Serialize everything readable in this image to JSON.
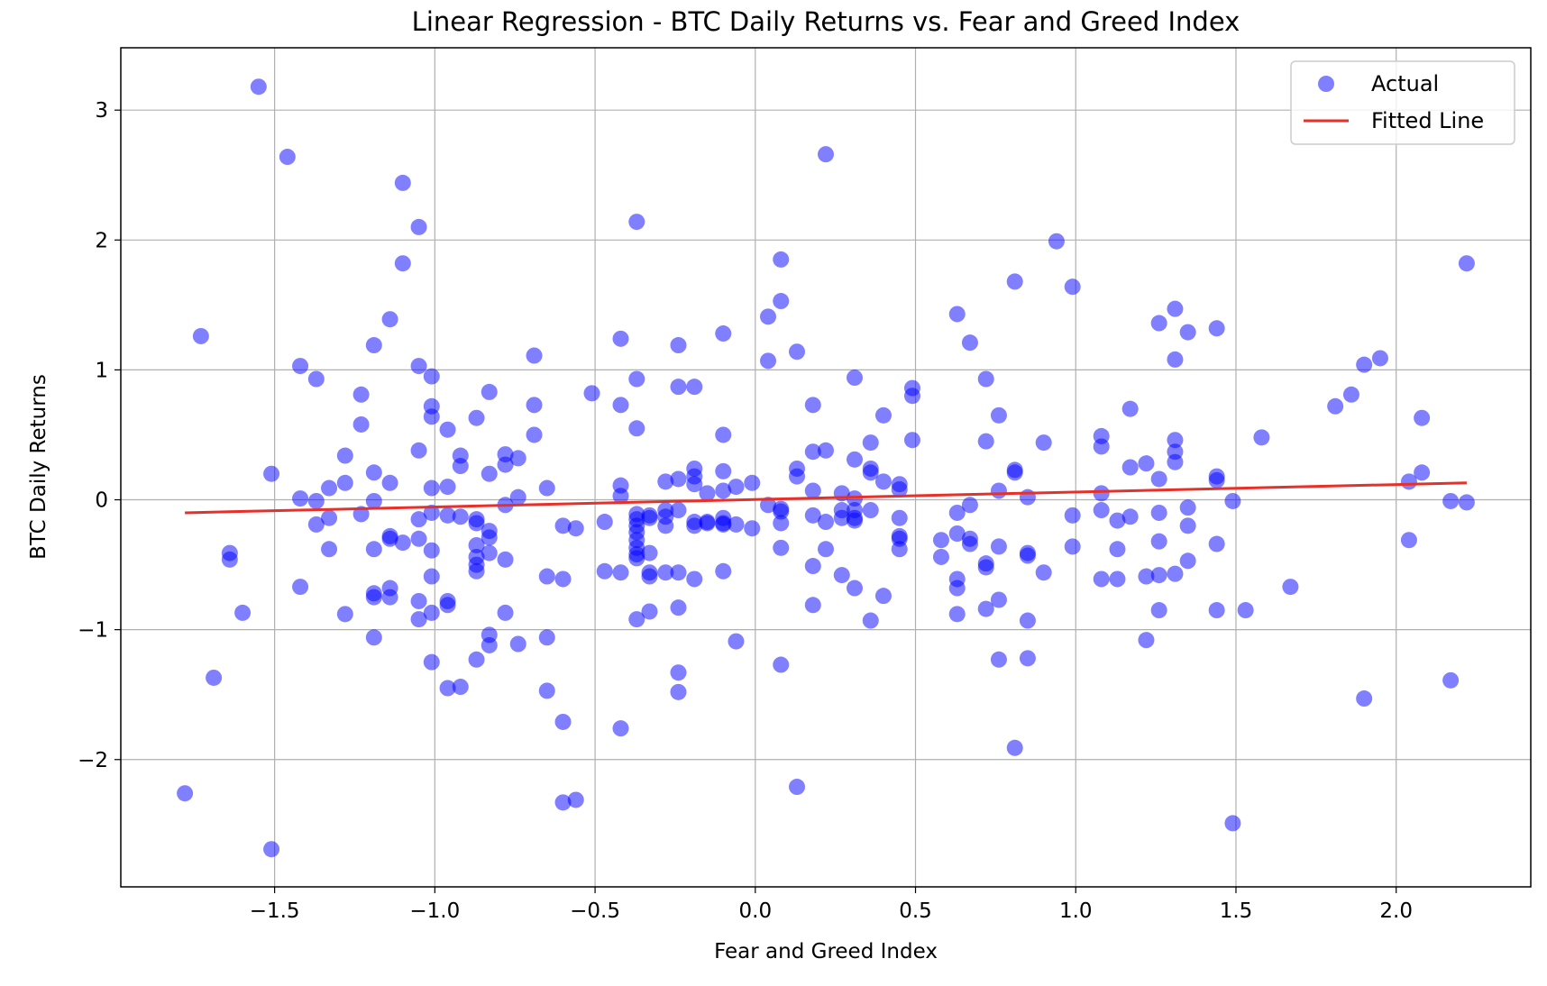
{
  "chart_data": {
    "type": "scatter",
    "title": "Linear Regression - BTC Daily Returns vs. Fear and Greed Index",
    "xlabel": "Fear and Greed Index",
    "ylabel": "BTC Daily Returns",
    "xlim": [
      -1.98,
      2.42
    ],
    "ylim": [
      -2.98,
      3.48
    ],
    "xticks": [
      -1.5,
      -1.0,
      -0.5,
      0.0,
      0.5,
      1.0,
      1.5,
      2.0
    ],
    "xtick_labels": [
      "−1.5",
      "−1.0",
      "−0.5",
      "0.0",
      "0.5",
      "1.0",
      "1.5",
      "2.0"
    ],
    "yticks": [
      -2,
      -1,
      0,
      1,
      2,
      3
    ],
    "ytick_labels": [
      "−2",
      "−1",
      "0",
      "1",
      "2",
      "3"
    ],
    "grid": true,
    "legend_position": "top-right",
    "colors": {
      "scatter": "#0000ff",
      "line": "#e8302a"
    },
    "series": [
      {
        "name": "Actual",
        "kind": "scatter",
        "points": [
          [
            -1.78,
            -2.26
          ],
          [
            -1.73,
            1.26
          ],
          [
            -1.69,
            -1.37
          ],
          [
            -1.64,
            -0.41
          ],
          [
            -1.64,
            -0.46
          ],
          [
            -1.6,
            -0.87
          ],
          [
            -1.55,
            3.18
          ],
          [
            -1.51,
            0.2
          ],
          [
            -1.51,
            -2.69
          ],
          [
            -1.46,
            2.64
          ],
          [
            -1.42,
            1.03
          ],
          [
            -1.42,
            0.01
          ],
          [
            -1.42,
            -0.67
          ],
          [
            -1.37,
            0.93
          ],
          [
            -1.37,
            -0.19
          ],
          [
            -1.37,
            -0.01
          ],
          [
            -1.33,
            0.09
          ],
          [
            -1.33,
            -0.14
          ],
          [
            -1.33,
            -0.38
          ],
          [
            -1.28,
            0.34
          ],
          [
            -1.28,
            0.13
          ],
          [
            -1.28,
            -0.88
          ],
          [
            -1.23,
            0.81
          ],
          [
            -1.23,
            0.58
          ],
          [
            -1.23,
            -0.11
          ],
          [
            -1.19,
            1.19
          ],
          [
            -1.19,
            0.21
          ],
          [
            -1.19,
            -0.01
          ],
          [
            -1.19,
            -0.38
          ],
          [
            -1.19,
            -0.72
          ],
          [
            -1.19,
            -0.75
          ],
          [
            -1.19,
            -1.06
          ],
          [
            -1.14,
            1.39
          ],
          [
            -1.14,
            0.13
          ],
          [
            -1.14,
            -0.28
          ],
          [
            -1.14,
            -0.3
          ],
          [
            -1.14,
            -0.68
          ],
          [
            -1.14,
            -0.75
          ],
          [
            -1.1,
            2.44
          ],
          [
            -1.1,
            1.82
          ],
          [
            -1.1,
            -0.33
          ],
          [
            -1.05,
            2.1
          ],
          [
            -1.05,
            1.03
          ],
          [
            -1.05,
            0.38
          ],
          [
            -1.05,
            -0.15
          ],
          [
            -1.05,
            -0.3
          ],
          [
            -1.05,
            -0.78
          ],
          [
            -1.05,
            -0.92
          ],
          [
            -1.01,
            0.95
          ],
          [
            -1.01,
            0.72
          ],
          [
            -1.01,
            0.64
          ],
          [
            -1.01,
            0.09
          ],
          [
            -1.01,
            -0.1
          ],
          [
            -1.01,
            -0.39
          ],
          [
            -1.01,
            -0.59
          ],
          [
            -1.01,
            -0.87
          ],
          [
            -1.01,
            -1.25
          ],
          [
            -0.96,
            0.54
          ],
          [
            -0.96,
            0.1
          ],
          [
            -0.96,
            -0.12
          ],
          [
            -0.96,
            -0.78
          ],
          [
            -0.96,
            -0.81
          ],
          [
            -0.96,
            -1.45
          ],
          [
            -0.92,
            0.34
          ],
          [
            -0.92,
            0.26
          ],
          [
            -0.92,
            -0.13
          ],
          [
            -0.92,
            -1.44
          ],
          [
            -0.87,
            0.63
          ],
          [
            -0.87,
            -0.15
          ],
          [
            -0.87,
            -0.18
          ],
          [
            -0.87,
            -0.35
          ],
          [
            -0.87,
            -0.44
          ],
          [
            -0.87,
            -0.5
          ],
          [
            -0.87,
            -0.55
          ],
          [
            -0.87,
            -1.23
          ],
          [
            -0.83,
            0.83
          ],
          [
            -0.83,
            0.2
          ],
          [
            -0.83,
            -0.24
          ],
          [
            -0.83,
            -0.29
          ],
          [
            -0.83,
            -0.41
          ],
          [
            -0.83,
            -1.04
          ],
          [
            -0.83,
            -1.12
          ],
          [
            -0.78,
            0.35
          ],
          [
            -0.78,
            0.27
          ],
          [
            -0.78,
            -0.04
          ],
          [
            -0.78,
            -0.46
          ],
          [
            -0.78,
            -0.87
          ],
          [
            -0.74,
            0.32
          ],
          [
            -0.74,
            0.02
          ],
          [
            -0.74,
            -1.11
          ],
          [
            -0.69,
            1.11
          ],
          [
            -0.69,
            0.73
          ],
          [
            -0.69,
            0.5
          ],
          [
            -0.65,
            0.09
          ],
          [
            -0.65,
            -0.59
          ],
          [
            -0.65,
            -1.06
          ],
          [
            -0.65,
            -1.47
          ],
          [
            -0.6,
            -0.2
          ],
          [
            -0.6,
            -0.61
          ],
          [
            -0.6,
            -1.71
          ],
          [
            -0.6,
            -2.33
          ],
          [
            -0.56,
            -0.22
          ],
          [
            -0.56,
            -2.31
          ],
          [
            -0.51,
            0.82
          ],
          [
            -0.47,
            -0.17
          ],
          [
            -0.47,
            -0.55
          ],
          [
            -0.42,
            1.24
          ],
          [
            -0.42,
            0.73
          ],
          [
            -0.42,
            0.11
          ],
          [
            -0.42,
            0.03
          ],
          [
            -0.42,
            -0.56
          ],
          [
            -0.42,
            -1.76
          ],
          [
            -0.37,
            2.14
          ],
          [
            -0.37,
            0.93
          ],
          [
            -0.37,
            0.55
          ],
          [
            -0.37,
            -0.11
          ],
          [
            -0.37,
            -0.15
          ],
          [
            -0.37,
            -0.2
          ],
          [
            -0.37,
            -0.25
          ],
          [
            -0.37,
            -0.31
          ],
          [
            -0.37,
            -0.37
          ],
          [
            -0.37,
            -0.42
          ],
          [
            -0.37,
            -0.45
          ],
          [
            -0.37,
            -0.92
          ],
          [
            -0.33,
            -0.12
          ],
          [
            -0.33,
            -0.14
          ],
          [
            -0.33,
            -0.41
          ],
          [
            -0.33,
            -0.56
          ],
          [
            -0.33,
            -0.59
          ],
          [
            -0.33,
            -0.86
          ],
          [
            -0.28,
            0.14
          ],
          [
            -0.28,
            -0.08
          ],
          [
            -0.28,
            -0.13
          ],
          [
            -0.28,
            -0.2
          ],
          [
            -0.28,
            -0.56
          ],
          [
            -0.24,
            1.19
          ],
          [
            -0.24,
            0.87
          ],
          [
            -0.24,
            0.16
          ],
          [
            -0.24,
            -0.08
          ],
          [
            -0.24,
            -0.56
          ],
          [
            -0.24,
            -0.83
          ],
          [
            -0.24,
            -1.33
          ],
          [
            -0.24,
            -1.48
          ],
          [
            -0.19,
            0.87
          ],
          [
            -0.19,
            0.24
          ],
          [
            -0.19,
            0.18
          ],
          [
            -0.19,
            0.12
          ],
          [
            -0.19,
            -0.17
          ],
          [
            -0.19,
            -0.2
          ],
          [
            -0.19,
            -0.61
          ],
          [
            -0.15,
            0.05
          ],
          [
            -0.15,
            -0.17
          ],
          [
            -0.15,
            -0.18
          ],
          [
            -0.1,
            1.28
          ],
          [
            -0.1,
            0.5
          ],
          [
            -0.1,
            0.22
          ],
          [
            -0.1,
            0.07
          ],
          [
            -0.1,
            -0.14
          ],
          [
            -0.1,
            -0.18
          ],
          [
            -0.1,
            -0.19
          ],
          [
            -0.1,
            -0.55
          ],
          [
            -0.06,
            0.1
          ],
          [
            -0.06,
            -0.19
          ],
          [
            -0.06,
            -1.09
          ],
          [
            -0.01,
            0.13
          ],
          [
            -0.01,
            -0.22
          ],
          [
            0.04,
            1.41
          ],
          [
            0.04,
            1.07
          ],
          [
            0.04,
            -0.04
          ],
          [
            0.08,
            1.85
          ],
          [
            0.08,
            1.53
          ],
          [
            0.08,
            -0.07
          ],
          [
            0.08,
            -0.09
          ],
          [
            0.08,
            -0.18
          ],
          [
            0.08,
            -0.37
          ],
          [
            0.08,
            -1.27
          ],
          [
            0.13,
            1.14
          ],
          [
            0.13,
            0.24
          ],
          [
            0.13,
            0.18
          ],
          [
            0.13,
            -2.21
          ],
          [
            0.18,
            0.73
          ],
          [
            0.18,
            0.37
          ],
          [
            0.18,
            0.07
          ],
          [
            0.18,
            -0.12
          ],
          [
            0.18,
            -0.51
          ],
          [
            0.18,
            -0.81
          ],
          [
            0.22,
            2.66
          ],
          [
            0.22,
            0.38
          ],
          [
            0.22,
            -0.17
          ],
          [
            0.22,
            -0.38
          ],
          [
            0.27,
            0.05
          ],
          [
            0.27,
            -0.08
          ],
          [
            0.27,
            -0.14
          ],
          [
            0.27,
            -0.58
          ],
          [
            0.31,
            0.94
          ],
          [
            0.31,
            0.31
          ],
          [
            0.31,
            0.01
          ],
          [
            0.31,
            -0.08
          ],
          [
            0.31,
            -0.14
          ],
          [
            0.31,
            -0.16
          ],
          [
            0.31,
            -0.68
          ],
          [
            0.36,
            0.44
          ],
          [
            0.36,
            0.24
          ],
          [
            0.36,
            0.21
          ],
          [
            0.36,
            -0.08
          ],
          [
            0.36,
            -0.93
          ],
          [
            0.4,
            0.65
          ],
          [
            0.4,
            0.14
          ],
          [
            0.4,
            -0.74
          ],
          [
            0.45,
            0.12
          ],
          [
            0.45,
            0.08
          ],
          [
            0.45,
            -0.14
          ],
          [
            0.45,
            -0.28
          ],
          [
            0.45,
            -0.3
          ],
          [
            0.45,
            -0.38
          ],
          [
            0.49,
            0.86
          ],
          [
            0.49,
            0.8
          ],
          [
            0.49,
            0.46
          ],
          [
            0.58,
            -0.31
          ],
          [
            0.58,
            -0.44
          ],
          [
            0.63,
            1.43
          ],
          [
            0.63,
            -0.1
          ],
          [
            0.63,
            -0.26
          ],
          [
            0.63,
            -0.61
          ],
          [
            0.63,
            -0.68
          ],
          [
            0.63,
            -0.88
          ],
          [
            0.67,
            1.21
          ],
          [
            0.67,
            -0.04
          ],
          [
            0.67,
            -0.3
          ],
          [
            0.67,
            -0.34
          ],
          [
            0.72,
            0.93
          ],
          [
            0.72,
            0.45
          ],
          [
            0.72,
            -0.49
          ],
          [
            0.72,
            -0.52
          ],
          [
            0.72,
            -0.84
          ],
          [
            0.76,
            0.65
          ],
          [
            0.76,
            0.07
          ],
          [
            0.76,
            -0.36
          ],
          [
            0.76,
            -0.77
          ],
          [
            0.76,
            -1.23
          ],
          [
            0.81,
            1.68
          ],
          [
            0.81,
            0.23
          ],
          [
            0.81,
            0.21
          ],
          [
            0.81,
            -1.91
          ],
          [
            0.85,
            0.02
          ],
          [
            0.85,
            -0.41
          ],
          [
            0.85,
            -0.43
          ],
          [
            0.85,
            -0.93
          ],
          [
            0.85,
            -1.22
          ],
          [
            0.9,
            0.44
          ],
          [
            0.9,
            -0.56
          ],
          [
            0.94,
            1.99
          ],
          [
            0.99,
            1.64
          ],
          [
            0.99,
            -0.12
          ],
          [
            0.99,
            -0.36
          ],
          [
            1.08,
            0.49
          ],
          [
            1.08,
            0.41
          ],
          [
            1.08,
            0.05
          ],
          [
            1.08,
            -0.08
          ],
          [
            1.08,
            -0.61
          ],
          [
            1.13,
            -0.16
          ],
          [
            1.13,
            -0.38
          ],
          [
            1.13,
            -0.61
          ],
          [
            1.17,
            0.7
          ],
          [
            1.17,
            0.25
          ],
          [
            1.17,
            -0.13
          ],
          [
            1.22,
            0.28
          ],
          [
            1.22,
            -0.59
          ],
          [
            1.22,
            -1.08
          ],
          [
            1.26,
            1.36
          ],
          [
            1.26,
            0.16
          ],
          [
            1.26,
            -0.1
          ],
          [
            1.26,
            -0.32
          ],
          [
            1.26,
            -0.58
          ],
          [
            1.26,
            -0.85
          ],
          [
            1.31,
            1.47
          ],
          [
            1.31,
            1.08
          ],
          [
            1.31,
            0.46
          ],
          [
            1.31,
            0.37
          ],
          [
            1.31,
            0.29
          ],
          [
            1.31,
            -0.57
          ],
          [
            1.35,
            1.29
          ],
          [
            1.35,
            -0.06
          ],
          [
            1.35,
            -0.2
          ],
          [
            1.35,
            -0.47
          ],
          [
            1.44,
            1.32
          ],
          [
            1.44,
            0.18
          ],
          [
            1.44,
            0.15
          ],
          [
            1.44,
            -0.34
          ],
          [
            1.44,
            -0.85
          ],
          [
            1.49,
            -0.01
          ],
          [
            1.49,
            -2.49
          ],
          [
            1.53,
            -0.85
          ],
          [
            1.58,
            0.48
          ],
          [
            1.67,
            -0.67
          ],
          [
            1.81,
            0.72
          ],
          [
            1.86,
            0.81
          ],
          [
            1.9,
            1.04
          ],
          [
            1.9,
            -1.53
          ],
          [
            1.95,
            1.09
          ],
          [
            2.04,
            0.14
          ],
          [
            2.04,
            -0.31
          ],
          [
            2.08,
            0.63
          ],
          [
            2.08,
            0.21
          ],
          [
            2.17,
            -0.01
          ],
          [
            2.17,
            -1.39
          ],
          [
            2.22,
            1.82
          ],
          [
            2.22,
            -0.02
          ]
        ]
      },
      {
        "name": "Fitted Line",
        "kind": "line",
        "points": [
          [
            -1.78,
            -0.1
          ],
          [
            2.22,
            0.13
          ]
        ]
      }
    ]
  }
}
